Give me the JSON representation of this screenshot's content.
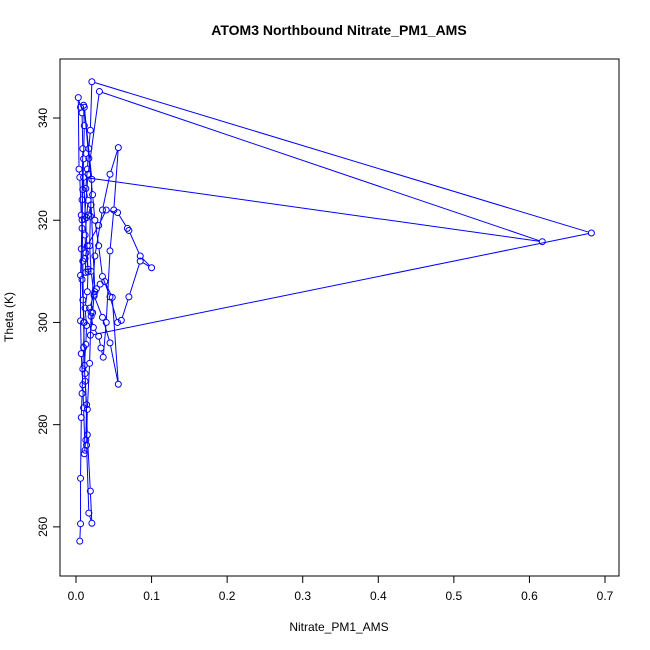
{
  "chart_data": {
    "type": "line",
    "title": "ATOM3 Northbound Nitrate_PM1_AMS",
    "xlabel": "Nitrate_PM1_AMS",
    "ylabel": "Theta (K)",
    "xlim": [
      0,
      0.7
    ],
    "ylim": [
      250,
      350
    ],
    "xticks": [
      "0.0",
      "0.1",
      "0.2",
      "0.3",
      "0.4",
      "0.5",
      "0.6",
      "0.7"
    ],
    "yticks": [
      "260",
      "280",
      "300",
      "320",
      "340"
    ],
    "grid": false,
    "marker": "open-circle",
    "series": [
      {
        "color": "#0000ff",
        "points": [
          [
            0.005,
            257.2
          ],
          [
            0.006,
            260.6
          ],
          [
            0.006,
            269.5
          ],
          [
            0.007,
            281.4
          ],
          [
            0.008,
            286.1
          ],
          [
            0.009,
            290.9
          ],
          [
            0.01,
            295.1
          ],
          [
            0.011,
            300.0
          ],
          [
            0.009,
            304.4
          ],
          [
            0.008,
            308.4
          ],
          [
            0.007,
            314.4
          ],
          [
            0.008,
            320.1
          ],
          [
            0.009,
            326.0
          ],
          [
            0.01,
            332.0
          ],
          [
            0.011,
            338.5
          ],
          [
            0.01,
            342.5
          ],
          [
            0.006,
            342.1
          ],
          [
            0.003,
            344.0
          ],
          [
            0.004,
            330.0
          ],
          [
            0.005,
            328.4
          ],
          [
            0.007,
            321.0
          ],
          [
            0.008,
            318.4
          ],
          [
            0.006,
            309.2
          ],
          [
            0.006,
            300.3
          ],
          [
            0.007,
            293.9
          ],
          [
            0.009,
            287.8
          ],
          [
            0.01,
            283.3
          ],
          [
            0.012,
            275.0
          ],
          [
            0.011,
            274.3
          ],
          [
            0.013,
            277.0
          ],
          [
            0.014,
            283.9
          ],
          [
            0.012,
            288.5
          ],
          [
            0.011,
            291.6
          ],
          [
            0.013,
            295.7
          ],
          [
            0.014,
            299.4
          ],
          [
            0.012,
            302.8
          ],
          [
            0.015,
            306.0
          ],
          [
            0.016,
            310.4
          ],
          [
            0.013,
            313.6
          ],
          [
            0.012,
            317.1
          ],
          [
            0.014,
            320.5
          ],
          [
            0.016,
            323.9
          ],
          [
            0.013,
            326.2
          ],
          [
            0.015,
            330.0
          ],
          [
            0.017,
            334.0
          ],
          [
            0.019,
            337.6
          ],
          [
            0.021,
            347.1
          ],
          [
            0.682,
            317.5
          ],
          [
            0.019,
            297.5
          ],
          [
            0.022,
            301.9
          ],
          [
            0.024,
            305.5
          ],
          [
            0.027,
            306.6
          ],
          [
            0.032,
            307.5
          ],
          [
            0.038,
            308.0
          ],
          [
            0.048,
            304.9
          ],
          [
            0.056,
            287.9
          ],
          [
            0.045,
            296.0
          ],
          [
            0.035,
            301.0
          ],
          [
            0.024,
            305.2
          ],
          [
            0.02,
            310.0
          ],
          [
            0.018,
            315.0
          ],
          [
            0.019,
            320.8
          ],
          [
            0.021,
            328.0
          ],
          [
            0.011,
            342.1
          ],
          [
            0.017,
            332.1
          ],
          [
            0.022,
            325.0
          ],
          [
            0.025,
            320.0
          ],
          [
            0.03,
            315.0
          ],
          [
            0.035,
            309.0
          ],
          [
            0.045,
            305.0
          ],
          [
            0.055,
            300.0
          ],
          [
            0.06,
            300.4
          ],
          [
            0.07,
            305.0
          ],
          [
            0.085,
            312.0
          ],
          [
            0.1,
            310.7
          ],
          [
            0.085,
            313.0
          ],
          [
            0.07,
            318.0
          ],
          [
            0.068,
            318.4
          ],
          [
            0.055,
            321.5
          ],
          [
            0.04,
            322.0
          ],
          [
            0.03,
            319.0
          ],
          [
            0.015,
            315.0
          ],
          [
            0.012,
            312.5
          ],
          [
            0.013,
            309.8
          ],
          [
            0.016,
            309.9
          ],
          [
            0.01,
            328.4
          ],
          [
            0.617,
            315.8
          ],
          [
            0.031,
            345.2
          ],
          [
            0.016,
            329.0
          ],
          [
            0.011,
            320.2
          ],
          [
            0.016,
            321.0
          ],
          [
            0.02,
            323.0
          ],
          [
            0.025,
            306.0
          ],
          [
            0.018,
            302.8
          ],
          [
            0.02,
            301.2
          ],
          [
            0.023,
            299.0
          ],
          [
            0.03,
            297.3
          ],
          [
            0.033,
            295.0
          ],
          [
            0.036,
            293.2
          ],
          [
            0.04,
            300.0
          ],
          [
            0.045,
            314.0
          ],
          [
            0.05,
            322.0
          ],
          [
            0.056,
            334.2
          ],
          [
            0.045,
            329.0
          ],
          [
            0.035,
            322.0
          ],
          [
            0.025,
            313.0
          ],
          [
            0.02,
            302.0
          ],
          [
            0.018,
            292.0
          ],
          [
            0.015,
            283.0
          ],
          [
            0.014,
            276.0
          ],
          [
            0.017,
            262.7
          ],
          [
            0.021,
            260.7
          ],
          [
            0.019,
            267.0
          ],
          [
            0.015,
            278.0
          ],
          [
            0.012,
            290.0
          ],
          [
            0.01,
            300.0
          ],
          [
            0.009,
            312.0
          ],
          [
            0.008,
            324.0
          ],
          [
            0.009,
            334.0
          ],
          [
            0.008,
            341.0
          ]
        ]
      }
    ]
  }
}
